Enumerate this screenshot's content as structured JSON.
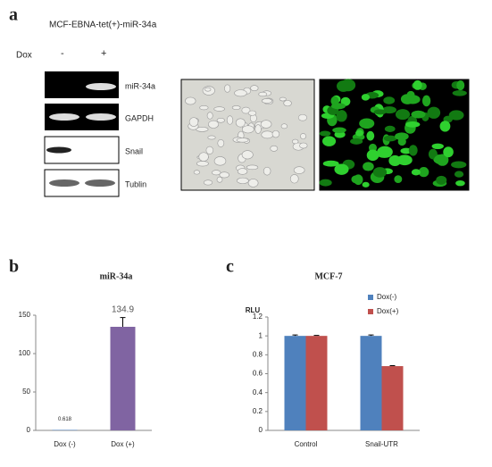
{
  "panel_a": {
    "panel": "a",
    "title": "MCF-EBNA-tet(+)-miR-34a",
    "dox_label": "Dox",
    "conditions": [
      "-",
      "+"
    ],
    "blots": [
      "miR-34a",
      "GAPDH",
      "Snail",
      "Tublin"
    ]
  },
  "chart_data": [
    {
      "panel": "b",
      "type": "bar",
      "title": "miR-34a",
      "categories": [
        "Dox (-)",
        "Dox (+)"
      ],
      "values": [
        0.618,
        134.9
      ],
      "errors": [
        null,
        12
      ],
      "colors": [
        "#4f81bd",
        "#8064a2"
      ],
      "ylim": [
        0,
        150
      ],
      "yticks": [
        0,
        50,
        100,
        150
      ]
    },
    {
      "panel": "c",
      "type": "grouped-bar",
      "title": "MCF-7",
      "y_label": "RLU",
      "categories": [
        "Control",
        "Snail-UTR"
      ],
      "series": [
        {
          "name": "Dox(-)",
          "color": "#4f81bd",
          "values": [
            1,
            1
          ],
          "errors": [
            0.01,
            0.01
          ]
        },
        {
          "name": "Dox(+)",
          "color": "#c0504d",
          "values": [
            1,
            0.68
          ],
          "errors": [
            0.005,
            0.005
          ]
        }
      ],
      "ylim": [
        0,
        1.2
      ],
      "yticks": [
        0,
        0.2,
        0.4,
        0.6,
        0.8,
        1,
        1.2
      ],
      "legend": "top-right"
    }
  ]
}
